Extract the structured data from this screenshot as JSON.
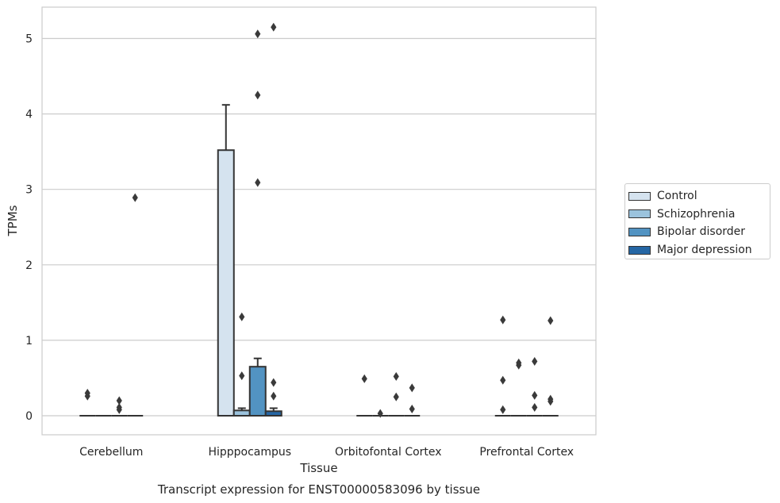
{
  "chart_data": {
    "type": "bar",
    "title": "Transcript expression for ENST00000583096 by tissue",
    "xlabel": "Tissue",
    "ylabel": "TPMs",
    "ylim": [
      -0.25,
      5.4
    ],
    "yticks": [
      0,
      1,
      2,
      3,
      4,
      5
    ],
    "grid": true,
    "legend_position": "right",
    "categories": [
      "Cerebellum",
      "Hipppocampus",
      "Orbitofontal Cortex",
      "Prefrontal Cortex"
    ],
    "series": [
      {
        "name": "Control",
        "color": "#d5e3ef",
        "values": [
          0,
          3.52,
          0,
          0
        ],
        "error_upper": [
          0,
          4.12,
          0,
          0
        ],
        "outliers": [
          [
            0.3,
            0.26
          ],
          [],
          [
            0.49
          ],
          [
            1.27,
            0.47,
            0.08
          ]
        ]
      },
      {
        "name": "Schizophrenia",
        "color": "#9bc3dd",
        "values": [
          0,
          0.07,
          0,
          0
        ],
        "error_upper": [
          0,
          0.1,
          0,
          0
        ],
        "outliers": [
          [],
          [
            1.31,
            0.53
          ],
          [
            0.03
          ],
          [
            0.7,
            0.67
          ]
        ]
      },
      {
        "name": "Bipolar disorder",
        "color": "#5293c2",
        "values": [
          0,
          0.65,
          0,
          0
        ],
        "error_upper": [
          0,
          0.76,
          0,
          0
        ],
        "outliers": [
          [
            0.2,
            0.11,
            0.08
          ],
          [
            5.06,
            4.25,
            3.09
          ],
          [
            0.52,
            0.25
          ],
          [
            0.72,
            0.27,
            0.11
          ]
        ]
      },
      {
        "name": "Major depression",
        "color": "#2566a4",
        "values": [
          0,
          0.06,
          0,
          0
        ],
        "error_upper": [
          0,
          0.1,
          0,
          0
        ],
        "outliers": [
          [
            2.89
          ],
          [
            5.15,
            0.44,
            0.26
          ],
          [
            0.37,
            0.09
          ],
          [
            1.26,
            0.22,
            0.19
          ]
        ]
      }
    ]
  }
}
